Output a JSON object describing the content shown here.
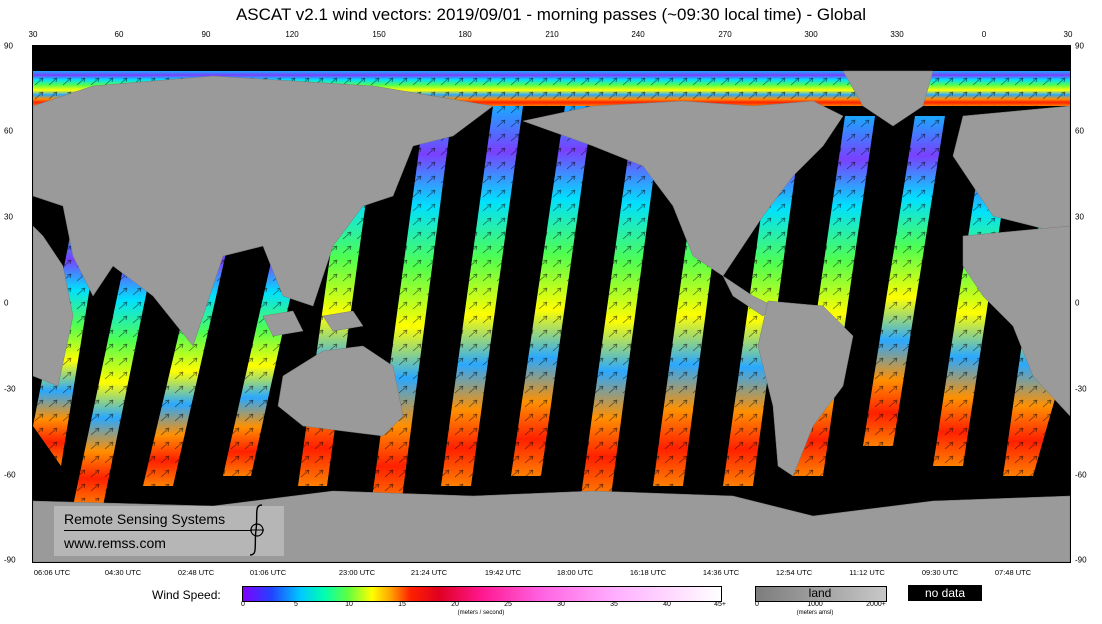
{
  "title": "ASCAT v2.1  wind vectors: 2019/09/01 - morning passes (~09:30 local time) - Global",
  "lon_ticks": [
    "30",
    "60",
    "90",
    "120",
    "150",
    "180",
    "210",
    "240",
    "270",
    "300",
    "330",
    "0",
    "30"
  ],
  "lat_ticks": [
    "90",
    "60",
    "30",
    "0",
    "-30",
    "-60",
    "-90"
  ],
  "utc_ticks": [
    "06:06 UTC",
    "04:30 UTC",
    "02:48 UTC",
    "01:06 UTC",
    "23:00 UTC",
    "21:24 UTC",
    "19:42 UTC",
    "18:00 UTC",
    "16:18 UTC",
    "14:36 UTC",
    "12:54 UTC",
    "11:12 UTC",
    "09:30 UTC",
    "07:48 UTC"
  ],
  "credit": {
    "name": "Remote Sensing Systems",
    "url": "www.remss.com"
  },
  "legend": {
    "wind_label": "Wind Speed:",
    "wind_ticks": [
      "0",
      "5",
      "10",
      "15",
      "20",
      "25",
      "30",
      "35",
      "40",
      "45+"
    ],
    "wind_units": "(meters / second)",
    "wind_colors": [
      "#8000ff",
      "#2244ff",
      "#00c8ff",
      "#00ffb0",
      "#60ff40",
      "#ffff00",
      "#ffa000",
      "#ff2000",
      "#ff1890",
      "#ffffff"
    ],
    "land_label": "land",
    "land_ticks": [
      "0",
      "1000",
      "2000+"
    ],
    "land_units": "(meters amsl)",
    "nodata_label": "no data"
  },
  "map": {
    "land_color": "#9a9a9a",
    "nodata_color": "#000000",
    "swath_count": 13
  }
}
